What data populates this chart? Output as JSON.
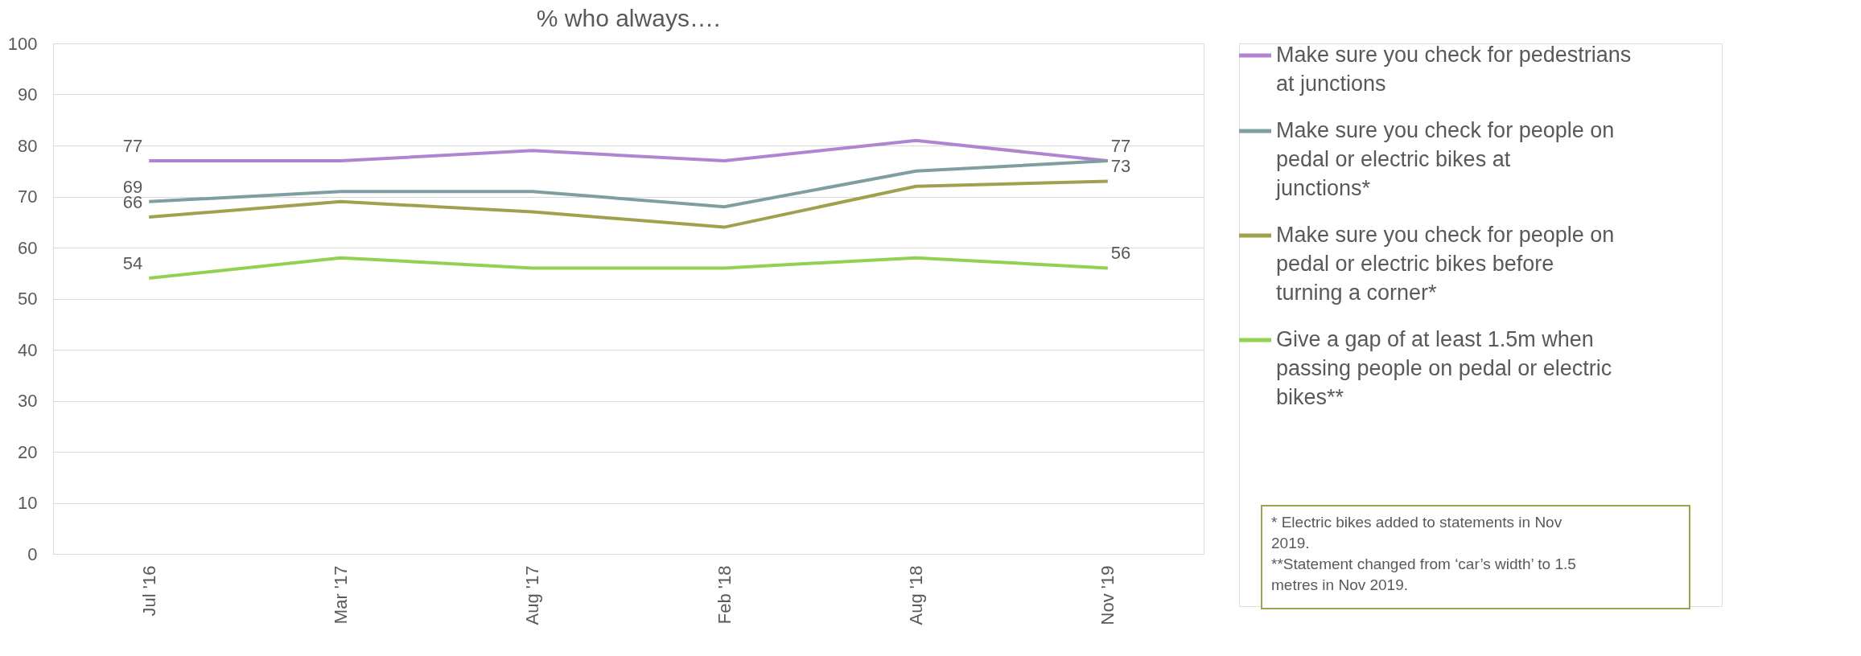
{
  "chart_data": {
    "type": "line",
    "title": "% who always….",
    "categories": [
      "Jul '16",
      "Mar '17",
      "Aug '17",
      "Feb '18",
      "Aug '18",
      "Nov '19"
    ],
    "series": [
      {
        "name": "Make sure you check for pedestrians at junctions",
        "color": "#b084d0",
        "values": [
          77,
          77,
          79,
          77,
          81,
          77
        ],
        "value_labels": [
          "77",
          null,
          null,
          null,
          null,
          "77"
        ]
      },
      {
        "name": "Make sure you check for people on pedal or electric bikes at junctions*",
        "color": "#7f9ea0",
        "values": [
          69,
          71,
          71,
          68,
          75,
          77
        ],
        "value_labels": [
          "69",
          null,
          null,
          null,
          null,
          null
        ]
      },
      {
        "name": "Make sure you check for people on pedal or electric bikes before turning a corner*",
        "color": "#a0a04e",
        "values": [
          66,
          69,
          67,
          64,
          72,
          73
        ],
        "value_labels": [
          "66",
          null,
          null,
          null,
          null,
          "73"
        ]
      },
      {
        "name": "Give a gap of at least 1.5m when passing people on pedal or electric bikes**",
        "color": "#92d050",
        "values": [
          54,
          58,
          56,
          56,
          58,
          56
        ],
        "value_labels": [
          "54",
          null,
          null,
          null,
          null,
          "56"
        ]
      }
    ],
    "ylim": [
      0,
      100
    ],
    "yticks": [
      0,
      10,
      20,
      30,
      40,
      50,
      60,
      70,
      80,
      90,
      100
    ],
    "grid": "y",
    "legend": "right",
    "marker": "none",
    "line_style": "solid",
    "annotations": [
      "* Electric bikes added to statements in Nov 2019.",
      "**Statement changed from ‘car’s width’ to 1.5 metres in Nov 2019."
    ]
  }
}
